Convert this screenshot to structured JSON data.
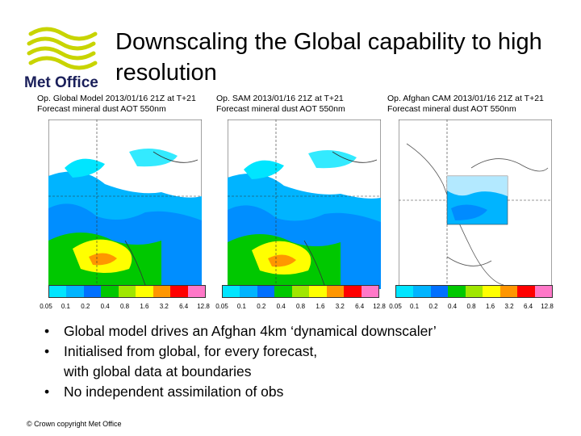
{
  "slide": {
    "title": "Downscaling the Global capability to high resolution",
    "logo_text": "Met Office",
    "footer": "© Crown copyright   Met Office"
  },
  "panels": [
    {
      "caption_line1": "Op. Global Model 2013/01/16 21Z at T+21",
      "caption_line2": "Forecast mineral dust AOT 550nm"
    },
    {
      "caption_line1": "Op. SAM 2013/01/16 21Z at T+21",
      "caption_line2": "Forecast mineral dust AOT 550nm"
    },
    {
      "caption_line1": "Op. Afghan CAM 2013/01/16 21Z at T+21",
      "caption_line2": "Forecast mineral dust AOT 550nm"
    }
  ],
  "colorbar": {
    "ticks": [
      "0.05",
      "0.1",
      "0.2",
      "0.4",
      "0.8",
      "1.6",
      "3.2",
      "6.4",
      "12.8"
    ],
    "colors": [
      "#00e5ff",
      "#00b4ff",
      "#0070ff",
      "#00c800",
      "#a0e600",
      "#ffff00",
      "#ff9600",
      "#ff0000",
      "#ff78c8"
    ]
  },
  "bullets": [
    {
      "text": "Global model drives an Afghan 4km ‘dynamical downscaler’"
    },
    {
      "text": "Initialised from global, for every forecast,",
      "continuation": "with global data at boundaries"
    },
    {
      "text": "No independent assimilation of obs"
    }
  ],
  "colors": {
    "logo_yellow": "#c8d400",
    "logo_text": "#1a1f5a"
  }
}
